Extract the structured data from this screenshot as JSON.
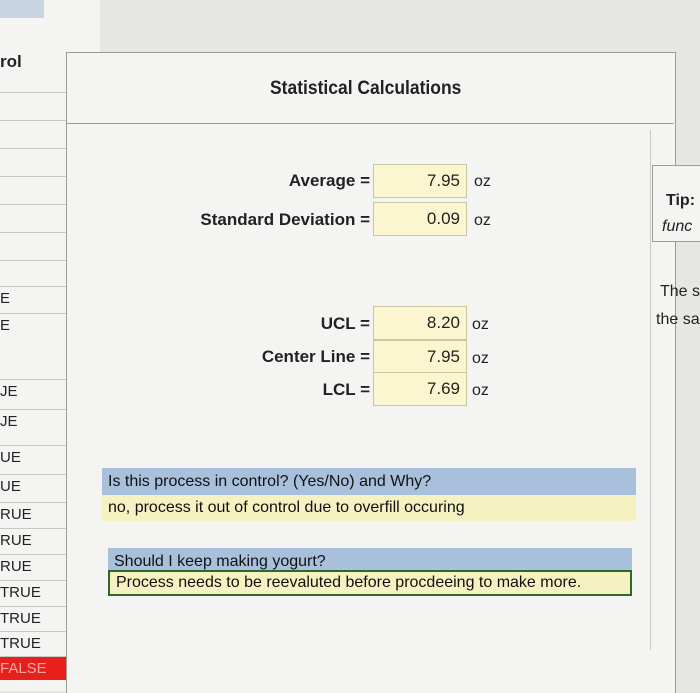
{
  "left_column": {
    "header": "rol",
    "cells": [
      "E",
      "E",
      "JE",
      "JE",
      "UE",
      "UE",
      "RUE",
      "RUE",
      "RUE",
      "TRUE",
      "TRUE",
      "TRUE",
      "FALSE"
    ]
  },
  "panel": {
    "title": "Statistical Calculations",
    "stats": [
      {
        "label": "Average =",
        "value": "7.95",
        "unit": "oz"
      },
      {
        "label": "Standard Deviation =",
        "value": "0.09",
        "unit": "oz"
      }
    ],
    "control_limits": [
      {
        "label": "UCL =",
        "value": "8.20",
        "unit": "oz"
      },
      {
        "label": "Center Line =",
        "value": "7.95",
        "unit": "oz"
      },
      {
        "label": "LCL =",
        "value": "7.69",
        "unit": "oz"
      }
    ],
    "question1": "Is this process in control? (Yes/No) and Why?",
    "answer1": "no, process it out of control due to overfill occuring",
    "question2": "Should I keep making yogurt?",
    "answer2": "Process needs to be reevaluted before procdeeing to make more."
  },
  "right_panel": {
    "tip_label": "Tip:",
    "tip_text": "func",
    "text_line1": "The s",
    "text_line2": "the sa"
  },
  "colors": {
    "value_fill": "#fbf6d0",
    "question_fill": "#a9c0dc",
    "answer_fill": "#f6f1c0",
    "false_fill": "#e8201c"
  }
}
